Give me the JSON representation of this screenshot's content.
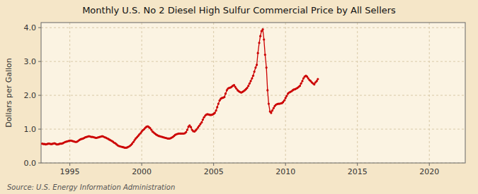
{
  "chart_data": {
    "type": "line",
    "title": "Monthly U.S. No 2 Diesel High Sulfur Commercial Price by All Sellers",
    "y_label": "Dollars per Gallon",
    "annotations": [
      "Source: U.S. Energy Information Administration"
    ],
    "color": "#cc0000",
    "marker": "circle",
    "line_style": "solid",
    "grid": true,
    "xlim": [
      1993.0,
      2022.5
    ],
    "ylim": [
      0.0,
      4.15
    ],
    "xticks": [
      1995,
      2000,
      2005,
      2010,
      2015,
      2020
    ],
    "yticks": [
      {
        "value": 0.0,
        "label": "0.0"
      },
      {
        "value": 1.0,
        "label": "1.0"
      },
      {
        "value": 2.0,
        "label": "2.0"
      },
      {
        "value": 3.0,
        "label": "3.0"
      },
      {
        "value": 4.0,
        "label": "4.0"
      }
    ],
    "x": [
      1993.08,
      1993.17,
      1993.25,
      1993.33,
      1993.42,
      1993.5,
      1993.58,
      1993.67,
      1993.75,
      1993.83,
      1993.92,
      1994.0,
      1994.08,
      1994.17,
      1994.25,
      1994.33,
      1994.42,
      1994.5,
      1994.58,
      1994.67,
      1994.75,
      1994.83,
      1994.92,
      1995.0,
      1995.08,
      1995.17,
      1995.25,
      1995.33,
      1995.42,
      1995.5,
      1995.58,
      1995.67,
      1995.75,
      1995.83,
      1995.92,
      1996.0,
      1996.08,
      1996.17,
      1996.25,
      1996.33,
      1996.42,
      1996.5,
      1996.58,
      1996.67,
      1996.75,
      1996.83,
      1996.92,
      1997.0,
      1997.08,
      1997.17,
      1997.25,
      1997.33,
      1997.42,
      1997.5,
      1997.58,
      1997.67,
      1997.75,
      1997.83,
      1997.92,
      1998.0,
      1998.08,
      1998.17,
      1998.25,
      1998.33,
      1998.42,
      1998.5,
      1998.58,
      1998.67,
      1998.75,
      1998.83,
      1998.92,
      1999.0,
      1999.08,
      1999.17,
      1999.25,
      1999.33,
      1999.42,
      1999.5,
      1999.58,
      1999.67,
      1999.75,
      1999.83,
      1999.92,
      2000.0,
      2000.08,
      2000.17,
      2000.25,
      2000.33,
      2000.42,
      2000.5,
      2000.58,
      2000.67,
      2000.75,
      2000.83,
      2000.92,
      2001.0,
      2001.08,
      2001.17,
      2001.25,
      2001.33,
      2001.42,
      2001.5,
      2001.58,
      2001.67,
      2001.75,
      2001.83,
      2001.92,
      2002.0,
      2002.08,
      2002.17,
      2002.25,
      2002.33,
      2002.42,
      2002.5,
      2002.58,
      2002.67,
      2002.75,
      2002.83,
      2002.92,
      2003.0,
      2003.08,
      2003.17,
      2003.25,
      2003.33,
      2003.42,
      2003.5,
      2003.58,
      2003.67,
      2003.75,
      2003.83,
      2003.92,
      2004.0,
      2004.08,
      2004.17,
      2004.25,
      2004.33,
      2004.42,
      2004.5,
      2004.58,
      2004.67,
      2004.75,
      2004.83,
      2004.92,
      2005.0,
      2005.08,
      2005.17,
      2005.25,
      2005.33,
      2005.42,
      2005.5,
      2005.58,
      2005.67,
      2005.75,
      2005.83,
      2005.92,
      2006.0,
      2006.08,
      2006.17,
      2006.25,
      2006.33,
      2006.42,
      2006.5,
      2006.58,
      2006.67,
      2006.75,
      2006.83,
      2006.92,
      2007.0,
      2007.08,
      2007.17,
      2007.25,
      2007.33,
      2007.42,
      2007.5,
      2007.58,
      2007.67,
      2007.75,
      2007.83,
      2007.92,
      2008.0,
      2008.08,
      2008.17,
      2008.25,
      2008.33,
      2008.42,
      2008.5,
      2008.58,
      2008.67,
      2008.75,
      2008.83,
      2008.92,
      2009.0,
      2009.08,
      2009.17,
      2009.25,
      2009.33,
      2009.42,
      2009.5,
      2009.58,
      2009.67,
      2009.75,
      2009.83,
      2009.92,
      2010.0,
      2010.08,
      2010.17,
      2010.25,
      2010.33,
      2010.42,
      2010.5,
      2010.58,
      2010.67,
      2010.75,
      2010.83,
      2010.92,
      2011.0,
      2011.08,
      2011.17,
      2011.25,
      2011.33,
      2011.42,
      2011.5,
      2011.58,
      2011.67,
      2011.75,
      2011.83,
      2011.92,
      2012.0,
      2012.08,
      2012.17,
      2012.25
    ],
    "values": [
      0.57,
      0.56,
      0.56,
      0.55,
      0.56,
      0.57,
      0.57,
      0.56,
      0.56,
      0.57,
      0.58,
      0.57,
      0.55,
      0.55,
      0.56,
      0.57,
      0.57,
      0.58,
      0.6,
      0.62,
      0.63,
      0.64,
      0.65,
      0.66,
      0.66,
      0.65,
      0.64,
      0.63,
      0.62,
      0.63,
      0.65,
      0.68,
      0.7,
      0.71,
      0.72,
      0.74,
      0.76,
      0.77,
      0.78,
      0.79,
      0.78,
      0.77,
      0.77,
      0.76,
      0.75,
      0.74,
      0.75,
      0.76,
      0.77,
      0.78,
      0.79,
      0.78,
      0.76,
      0.75,
      0.73,
      0.71,
      0.69,
      0.67,
      0.65,
      0.63,
      0.6,
      0.58,
      0.55,
      0.52,
      0.5,
      0.49,
      0.48,
      0.47,
      0.46,
      0.45,
      0.45,
      0.46,
      0.48,
      0.5,
      0.53,
      0.57,
      0.62,
      0.67,
      0.72,
      0.76,
      0.8,
      0.84,
      0.88,
      0.93,
      0.97,
      1.0,
      1.04,
      1.07,
      1.08,
      1.06,
      1.03,
      0.98,
      0.93,
      0.9,
      0.87,
      0.84,
      0.82,
      0.8,
      0.79,
      0.78,
      0.77,
      0.76,
      0.75,
      0.74,
      0.73,
      0.72,
      0.72,
      0.73,
      0.75,
      0.77,
      0.8,
      0.83,
      0.85,
      0.86,
      0.87,
      0.87,
      0.87,
      0.87,
      0.87,
      0.88,
      0.91,
      0.98,
      1.07,
      1.11,
      1.06,
      0.98,
      0.94,
      0.93,
      0.96,
      1.0,
      1.05,
      1.1,
      1.15,
      1.2,
      1.28,
      1.35,
      1.4,
      1.43,
      1.44,
      1.43,
      1.42,
      1.42,
      1.43,
      1.45,
      1.48,
      1.55,
      1.65,
      1.75,
      1.85,
      1.9,
      1.92,
      1.93,
      1.95,
      2.05,
      2.15,
      2.2,
      2.22,
      2.23,
      2.25,
      2.28,
      2.3,
      2.25,
      2.2,
      2.15,
      2.12,
      2.1,
      2.08,
      2.1,
      2.12,
      2.15,
      2.18,
      2.22,
      2.28,
      2.35,
      2.42,
      2.5,
      2.58,
      2.7,
      2.82,
      2.9,
      3.25,
      3.55,
      3.75,
      3.9,
      3.95,
      3.65,
      3.2,
      2.82,
      2.15,
      1.75,
      1.52,
      1.48,
      1.55,
      1.62,
      1.68,
      1.72,
      1.74,
      1.75,
      1.75,
      1.76,
      1.77,
      1.8,
      1.85,
      1.92,
      1.98,
      2.05,
      2.08,
      2.1,
      2.12,
      2.15,
      2.17,
      2.18,
      2.2,
      2.22,
      2.25,
      2.28,
      2.35,
      2.42,
      2.5,
      2.55,
      2.58,
      2.55,
      2.5,
      2.45,
      2.42,
      2.38,
      2.35,
      2.32,
      2.38,
      2.42,
      2.48
    ]
  }
}
